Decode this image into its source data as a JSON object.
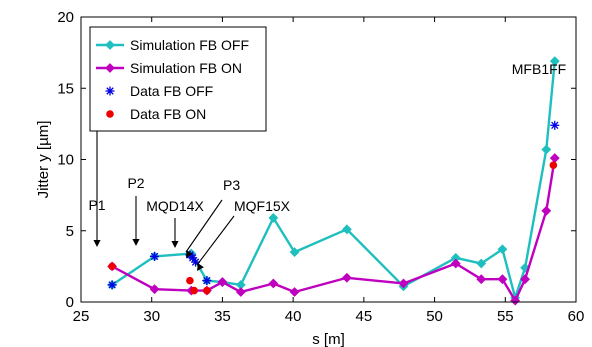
{
  "chart_data": {
    "type": "line",
    "xlabel": "s [m]",
    "ylabel": "Jitter y [µm]",
    "xlim": [
      25,
      60
    ],
    "ylim": [
      0,
      20
    ],
    "xticks": [
      25,
      30,
      35,
      40,
      45,
      50,
      55,
      60
    ],
    "yticks": [
      0,
      5,
      10,
      15,
      20
    ],
    "grid": false,
    "legend_position": "top-left",
    "series": [
      {
        "name": "Simulation FB OFF",
        "style": "line-diamond",
        "color": "#1fbfbf",
        "x": [
          27.2,
          30.2,
          32.8,
          33.9,
          35.0,
          36.3,
          38.6,
          40.1,
          43.8,
          47.8,
          51.5,
          53.3,
          54.8,
          55.7,
          56.4,
          57.9,
          58.5
        ],
        "y": [
          1.2,
          3.2,
          3.4,
          1.5,
          1.4,
          1.2,
          5.9,
          3.5,
          5.1,
          1.1,
          3.1,
          2.7,
          3.7,
          0.3,
          2.4,
          10.7,
          16.9
        ]
      },
      {
        "name": "Simulation FB ON",
        "style": "line-diamond",
        "color": "#bf00bf",
        "x": [
          27.2,
          30.2,
          32.8,
          33.9,
          35.0,
          36.3,
          38.6,
          40.1,
          43.8,
          47.8,
          51.5,
          53.3,
          54.8,
          55.7,
          56.4,
          57.9,
          58.5
        ],
        "y": [
          2.5,
          0.9,
          0.8,
          0.8,
          1.4,
          0.7,
          1.3,
          0.7,
          1.7,
          1.3,
          2.7,
          1.6,
          1.6,
          0.1,
          1.6,
          6.4,
          10.1
        ]
      },
      {
        "name": "Data FB OFF",
        "style": "star",
        "color": "#0000e0",
        "x": [
          27.2,
          30.2,
          32.7,
          32.9,
          33.1,
          33.9,
          58.5
        ],
        "y": [
          1.2,
          3.2,
          3.3,
          3.1,
          2.8,
          1.5,
          12.4
        ]
      },
      {
        "name": "Data FB ON",
        "style": "dot",
        "color": "#ee0000",
        "x": [
          27.2,
          32.7,
          33.0,
          33.9,
          58.4
        ],
        "y": [
          2.5,
          1.5,
          0.8,
          0.8,
          9.6
        ]
      }
    ],
    "annotations": [
      {
        "label": "P1",
        "x": 27.2,
        "target_y": 3.4
      },
      {
        "label": "P2",
        "x": 30.2,
        "target_y": 3.6
      },
      {
        "label": "MQD14X",
        "x": 32.8,
        "target_y": 3.5
      },
      {
        "label": "P3",
        "x": 33.3,
        "target_y": 2.6
      },
      {
        "label": "MQF15X",
        "x": 33.7,
        "target_y": 1.7
      },
      {
        "label": "MFB1FF",
        "x": 58.5,
        "target_y": 16.9
      }
    ]
  }
}
